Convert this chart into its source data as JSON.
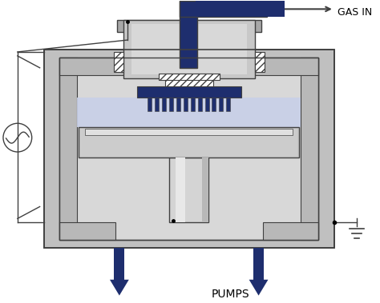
{
  "bg_color": "#ffffff",
  "chamber_outer_color": "#c0c0c0",
  "chamber_inner_color": "#d8d8d8",
  "chamber_wall_color": "#b8b8b8",
  "top_dome_color": "#c8c8c8",
  "top_dome_dark": "#a8a8a8",
  "plasma_color": "#c8d0e8",
  "blue_dark": "#1e2e6e",
  "electrode_gray": "#b0b8c0",
  "light_silver": "#d4d4d4",
  "column_color": "#c0c0c0",
  "outline": "#404040",
  "hatch_color": "#707070",
  "gas_in_label": "GAS IN",
  "pumps_label": "PUMPS",
  "white": "#ffffff"
}
